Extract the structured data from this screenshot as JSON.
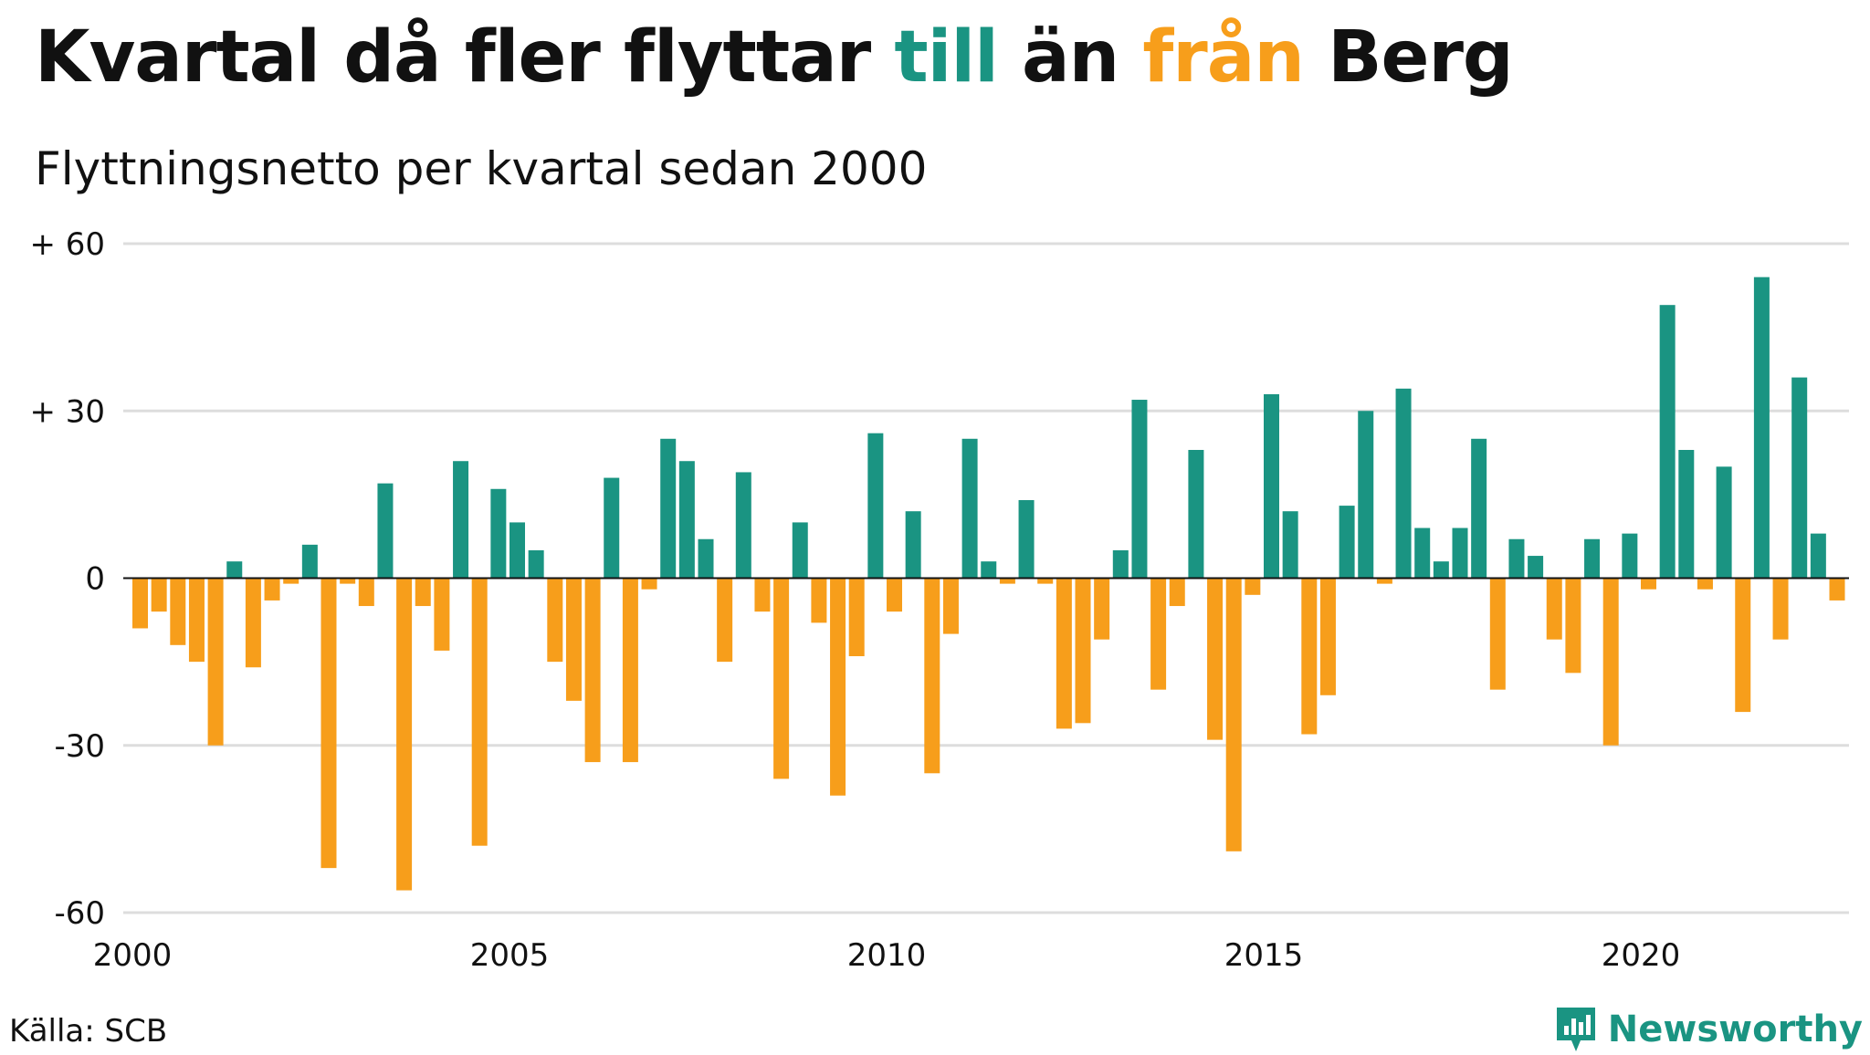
{
  "title": {
    "part1": "Kvartal då fler flyttar ",
    "till": "till",
    "part2": " än ",
    "fran": "från",
    "part3": " Berg"
  },
  "subtitle": "Flyttningsnetto per kvartal sedan 2000",
  "source": "Källa: SCB",
  "brand": {
    "name": "Newsworthy",
    "icon": "newsworthy-logo-icon"
  },
  "colors": {
    "positive": "#1a9482",
    "negative": "#f79e1b",
    "grid": "#dddddd",
    "axis": "#111111",
    "brand": "#1a9482"
  },
  "chart_data": {
    "type": "bar",
    "title": "Kvartal då fler flyttar till än från Berg",
    "subtitle": "Flyttningsnetto per kvartal sedan 2000",
    "xlabel": "",
    "ylabel": "",
    "ylim": [
      -60,
      60
    ],
    "y_ticks": [
      {
        "value": 60,
        "label": "+ 60"
      },
      {
        "value": 30,
        "label": "+ 30"
      },
      {
        "value": 0,
        "label": "0"
      },
      {
        "value": -30,
        "label": "-30"
      },
      {
        "value": -60,
        "label": "-60"
      }
    ],
    "x_ticks": [
      "2000",
      "2005",
      "2010",
      "2015",
      "2020"
    ],
    "start_year": 2000,
    "grid": true,
    "series": [
      {
        "name": "Flyttningsnetto",
        "values": [
          -9,
          -6,
          -12,
          -15,
          -30,
          3,
          -16,
          -4,
          -1,
          6,
          -52,
          -1,
          -5,
          17,
          -56,
          -5,
          -13,
          21,
          -48,
          16,
          10,
          5,
          -15,
          -22,
          -33,
          18,
          -33,
          -2,
          25,
          21,
          7,
          -15,
          19,
          -6,
          -36,
          10,
          -8,
          -39,
          -14,
          26,
          -6,
          12,
          -35,
          -10,
          25,
          3,
          -1,
          14,
          -1,
          -27,
          -26,
          -11,
          5,
          32,
          -20,
          -5,
          23,
          -29,
          -49,
          -3,
          33,
          12,
          -28,
          -21,
          13,
          30,
          -1,
          34,
          9,
          3,
          9,
          25,
          -20,
          7,
          4,
          -11,
          -17,
          7,
          -30,
          8,
          -2,
          49,
          23,
          -2,
          20,
          -24,
          54,
          -11,
          36,
          8,
          -4
        ]
      }
    ]
  }
}
